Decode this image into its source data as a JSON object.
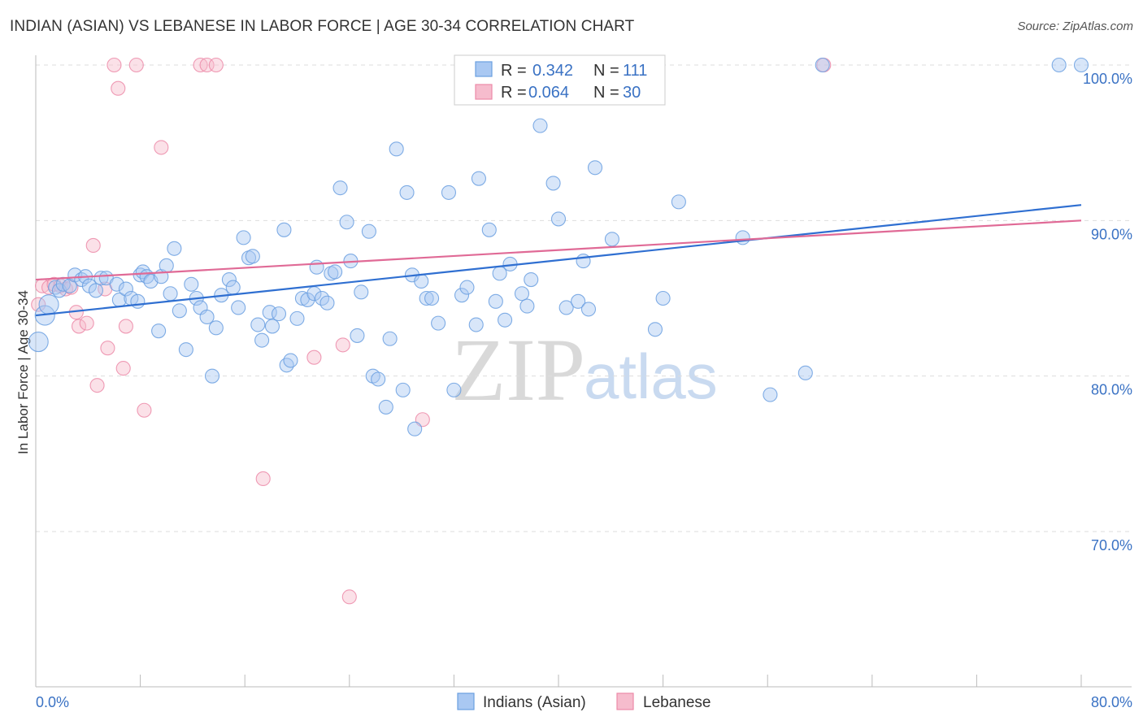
{
  "title": "INDIAN (ASIAN) VS LEBANESE IN LABOR FORCE | AGE 30-34 CORRELATION CHART",
  "source": "Source: ZipAtlas.com",
  "watermark": {
    "zip": "ZIP",
    "atlas": "atlas"
  },
  "colors": {
    "blue": "#6a9fe0",
    "blue_fill": "#a9c8f2",
    "blue_line": "#2f6fd1",
    "pink": "#ec8aa8",
    "pink_fill": "#f6bccd",
    "pink_line": "#e06a96",
    "axis_label": "#3a72c4"
  },
  "chart_data": {
    "type": "scatter",
    "title": "INDIAN (ASIAN) VS LEBANESE IN LABOR FORCE | AGE 30-34 CORRELATION CHART",
    "xlabel": "",
    "ylabel": "In Labor Force | Age 30-34",
    "xlim": [
      0,
      80
    ],
    "ylim": [
      60,
      102
    ],
    "x_tick_labels": [
      "0.0%",
      "80.0%"
    ],
    "y_ticks": [
      70,
      80,
      90,
      100
    ],
    "y_tick_labels": [
      "70.0%",
      "80.0%",
      "90.0%",
      "100.0%"
    ],
    "grid": true,
    "legend": [
      {
        "name": "Indians (Asian)",
        "r_label": "R =",
        "r": "0.342",
        "n_label": "N =",
        "n": "111"
      },
      {
        "name": "Lebanese",
        "r_label": "R =",
        "r": "0.064",
        "n_label": "N =",
        "n": "30"
      }
    ],
    "series": [
      {
        "name": "Indians (Asian)",
        "trend": {
          "x": [
            0,
            80
          ],
          "y": [
            83.9,
            91.0
          ]
        },
        "points": [
          [
            0.2,
            82.2
          ],
          [
            0.7,
            83.9
          ],
          [
            1.0,
            84.6
          ],
          [
            1.5,
            85.7
          ],
          [
            1.8,
            85.5
          ],
          [
            2.1,
            85.9
          ],
          [
            2.6,
            85.8
          ],
          [
            3.0,
            86.5
          ],
          [
            3.5,
            86.2
          ],
          [
            3.8,
            86.4
          ],
          [
            4.1,
            85.8
          ],
          [
            4.6,
            85.5
          ],
          [
            5.0,
            86.3
          ],
          [
            5.4,
            86.3
          ],
          [
            6.2,
            85.9
          ],
          [
            6.4,
            84.9
          ],
          [
            6.9,
            85.6
          ],
          [
            7.3,
            85.0
          ],
          [
            7.8,
            84.8
          ],
          [
            8.0,
            86.5
          ],
          [
            8.2,
            86.7
          ],
          [
            8.5,
            86.4
          ],
          [
            8.8,
            86.1
          ],
          [
            9.4,
            82.9
          ],
          [
            9.6,
            86.4
          ],
          [
            10.0,
            87.1
          ],
          [
            10.3,
            85.3
          ],
          [
            10.6,
            88.2
          ],
          [
            11.0,
            84.2
          ],
          [
            11.5,
            81.7
          ],
          [
            11.9,
            85.9
          ],
          [
            12.3,
            85.0
          ],
          [
            12.6,
            84.4
          ],
          [
            13.1,
            83.8
          ],
          [
            13.5,
            80.0
          ],
          [
            13.8,
            83.1
          ],
          [
            14.2,
            85.2
          ],
          [
            14.8,
            86.2
          ],
          [
            15.1,
            85.7
          ],
          [
            15.5,
            84.4
          ],
          [
            15.9,
            88.9
          ],
          [
            16.3,
            87.6
          ],
          [
            16.6,
            87.7
          ],
          [
            17.0,
            83.3
          ],
          [
            17.3,
            82.3
          ],
          [
            17.9,
            84.1
          ],
          [
            18.1,
            83.2
          ],
          [
            18.6,
            84.0
          ],
          [
            19.0,
            89.4
          ],
          [
            19.2,
            80.7
          ],
          [
            19.5,
            81.0
          ],
          [
            20.0,
            83.7
          ],
          [
            20.4,
            85.0
          ],
          [
            20.8,
            84.9
          ],
          [
            21.3,
            85.3
          ],
          [
            21.5,
            87.0
          ],
          [
            21.9,
            85.0
          ],
          [
            22.3,
            84.7
          ],
          [
            22.6,
            86.6
          ],
          [
            22.9,
            86.7
          ],
          [
            23.3,
            92.1
          ],
          [
            23.8,
            89.9
          ],
          [
            24.1,
            87.4
          ],
          [
            24.6,
            82.6
          ],
          [
            24.9,
            85.4
          ],
          [
            25.5,
            89.3
          ],
          [
            25.8,
            80.0
          ],
          [
            26.2,
            79.8
          ],
          [
            26.8,
            78.0
          ],
          [
            27.1,
            82.4
          ],
          [
            27.6,
            94.6
          ],
          [
            28.1,
            79.1
          ],
          [
            28.4,
            91.8
          ],
          [
            28.8,
            86.5
          ],
          [
            29.0,
            76.6
          ],
          [
            29.5,
            86.1
          ],
          [
            29.9,
            85.0
          ],
          [
            30.3,
            85.0
          ],
          [
            30.8,
            83.4
          ],
          [
            31.6,
            91.8
          ],
          [
            32.0,
            79.1
          ],
          [
            32.6,
            85.2
          ],
          [
            33.0,
            85.7
          ],
          [
            33.7,
            83.3
          ],
          [
            33.9,
            92.7
          ],
          [
            34.7,
            89.4
          ],
          [
            35.2,
            84.8
          ],
          [
            35.5,
            86.6
          ],
          [
            35.9,
            83.6
          ],
          [
            36.3,
            87.2
          ],
          [
            37.2,
            85.3
          ],
          [
            37.6,
            84.5
          ],
          [
            37.9,
            86.2
          ],
          [
            38.6,
            96.1
          ],
          [
            39.6,
            92.4
          ],
          [
            40.0,
            90.1
          ],
          [
            40.6,
            84.4
          ],
          [
            41.5,
            84.8
          ],
          [
            41.9,
            87.4
          ],
          [
            42.3,
            84.3
          ],
          [
            42.8,
            93.4
          ],
          [
            44.1,
            88.8
          ],
          [
            47.4,
            83.0
          ],
          [
            48.0,
            85.0
          ],
          [
            49.2,
            91.2
          ],
          [
            54.1,
            88.9
          ],
          [
            56.2,
            78.8
          ],
          [
            58.9,
            80.2
          ],
          [
            60.2,
            100.0
          ],
          [
            78.3,
            100.0
          ],
          [
            80.0,
            100.0
          ]
        ]
      },
      {
        "name": "Lebanese",
        "trend": {
          "x": [
            0,
            80
          ],
          "y": [
            86.2,
            90.0
          ]
        },
        "points": [
          [
            0.2,
            84.6
          ],
          [
            0.5,
            85.8
          ],
          [
            1.0,
            85.7
          ],
          [
            1.4,
            85.9
          ],
          [
            1.9,
            85.8
          ],
          [
            2.3,
            85.6
          ],
          [
            2.7,
            85.7
          ],
          [
            3.1,
            84.1
          ],
          [
            3.3,
            83.2
          ],
          [
            3.9,
            83.4
          ],
          [
            4.4,
            88.4
          ],
          [
            4.7,
            79.4
          ],
          [
            5.3,
            85.6
          ],
          [
            5.5,
            81.8
          ],
          [
            6.0,
            100.0
          ],
          [
            6.3,
            98.5
          ],
          [
            6.7,
            80.5
          ],
          [
            6.9,
            83.2
          ],
          [
            7.7,
            100.0
          ],
          [
            8.3,
            77.8
          ],
          [
            9.6,
            94.7
          ],
          [
            12.6,
            100.0
          ],
          [
            13.1,
            100.0
          ],
          [
            13.8,
            100.0
          ],
          [
            17.4,
            73.4
          ],
          [
            21.3,
            81.2
          ],
          [
            23.5,
            82.0
          ],
          [
            24.0,
            65.8
          ],
          [
            29.6,
            77.2
          ],
          [
            60.3,
            100.0
          ]
        ]
      }
    ]
  }
}
